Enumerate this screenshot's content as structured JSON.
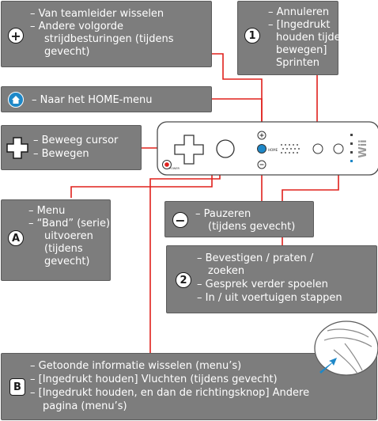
{
  "buttons": {
    "plus": {
      "lines": [
        "– Van teamleider wisselen",
        "– Andere volgorde",
        "strijdbesturingen (tijdens",
        "gevecht)"
      ]
    },
    "one": {
      "badge": "1",
      "lines": [
        "– Annuleren",
        "– [Ingedrukt",
        "houden tijdens",
        "bewegen]",
        "Sprinten"
      ]
    },
    "home": {
      "lines": [
        "– Naar het HOME-menu"
      ]
    },
    "dpad": {
      "lines": [
        "– Beweeg cursor",
        "– Bewegen"
      ]
    },
    "a": {
      "badge": "A",
      "lines": [
        "– Menu",
        "– “Band” (serie)",
        "uitvoeren",
        "(tijdens",
        "gevecht)"
      ]
    },
    "minus": {
      "lines": [
        "– Pauzeren",
        "(tijdens gevecht)"
      ]
    },
    "two": {
      "badge": "2",
      "lines": [
        "– Bevestigen / praten  /",
        "zoeken",
        "– Gesprek verder spoelen",
        "– In / uit voertuigen stappen"
      ]
    },
    "b": {
      "badge": "B",
      "lines": [
        "– Getoonde informatie wisselen (menu’s)",
        "– [Ingedrukt houden] Vluchten (tijdens gevecht)",
        "– [Ingedrukt houden, en dan de richtingsknop] Andere",
        "pagina (menu’s)"
      ]
    }
  },
  "remote": {
    "brand": "Wii",
    "home_label": "HOME",
    "power_label": "POWER",
    "a_label": "A",
    "one_label": "1",
    "two_label": "2"
  },
  "colors": {
    "box_fill": "#7d7d7d",
    "connector": "#e0201c",
    "home_blue": "#1e88c8"
  }
}
